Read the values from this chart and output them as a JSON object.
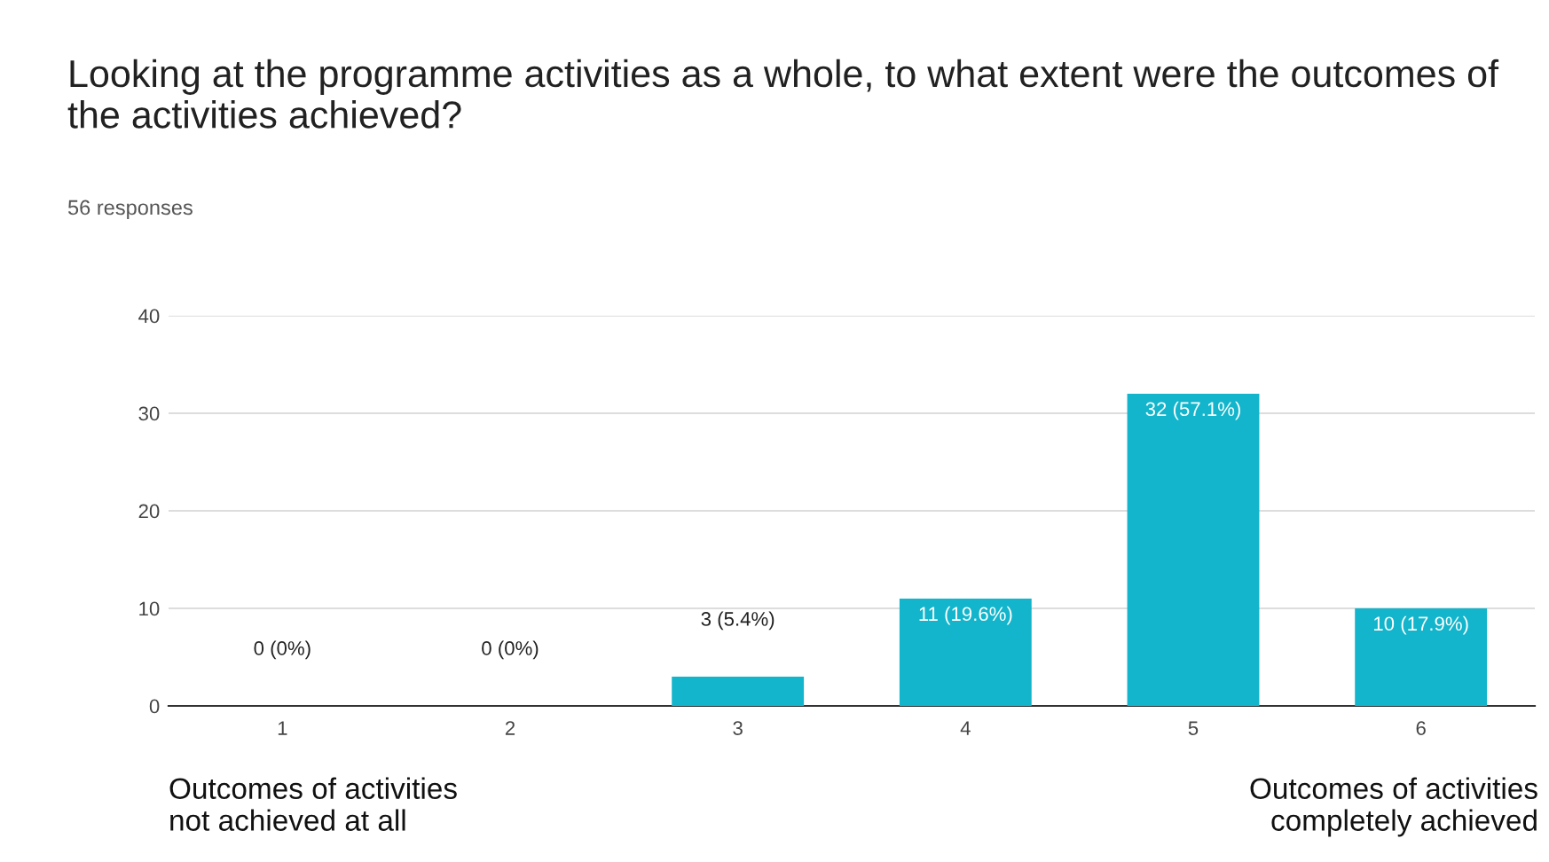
{
  "chart_data": {
    "type": "bar",
    "title": "Looking at the programme activities as a whole, to what extent were the outcomes of the activities achieved?",
    "subtitle": "56 responses",
    "categories": [
      "1",
      "2",
      "3",
      "4",
      "5",
      "6"
    ],
    "values": [
      0,
      0,
      3,
      11,
      32,
      10
    ],
    "value_labels": [
      "0 (0%)",
      "0 (0%)",
      "3 (5.4%)",
      "11 (19.6%)",
      "32 (57.1%)",
      "10 (17.9%)"
    ],
    "color": "#12b5cb",
    "ylim": [
      0,
      40
    ],
    "yticks": [
      0,
      10,
      20,
      30,
      40
    ],
    "grid": "y",
    "annotations": [
      "Outcomes of activities\nnot achieved at all",
      "Outcomes of activities\ncompletely achieved"
    ]
  }
}
